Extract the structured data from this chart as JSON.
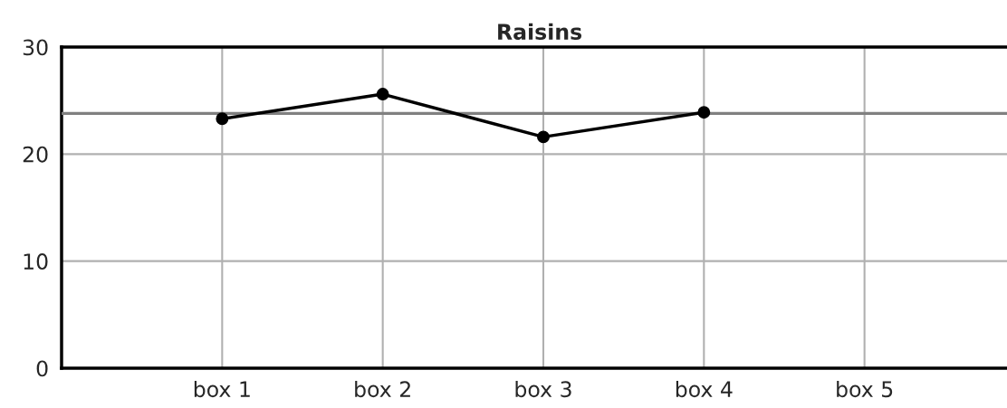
{
  "chart_data": {
    "type": "line",
    "title": "Raisins",
    "categories": [
      null,
      "box 1",
      "box 2",
      "box 3",
      "box 4",
      "box 5"
    ],
    "series": [
      {
        "color": "#000000",
        "values": [
          null,
          23.3,
          25.6,
          21.6,
          23.9,
          null
        ]
      }
    ],
    "ylim": [
      0,
      30
    ],
    "yticks": [
      0,
      10,
      20,
      30
    ],
    "grid": true,
    "marker": "circle",
    "line_style": "solid",
    "ref_lines": [
      {
        "axis": "y",
        "value": 23.8,
        "color": "#808080"
      }
    ]
  }
}
